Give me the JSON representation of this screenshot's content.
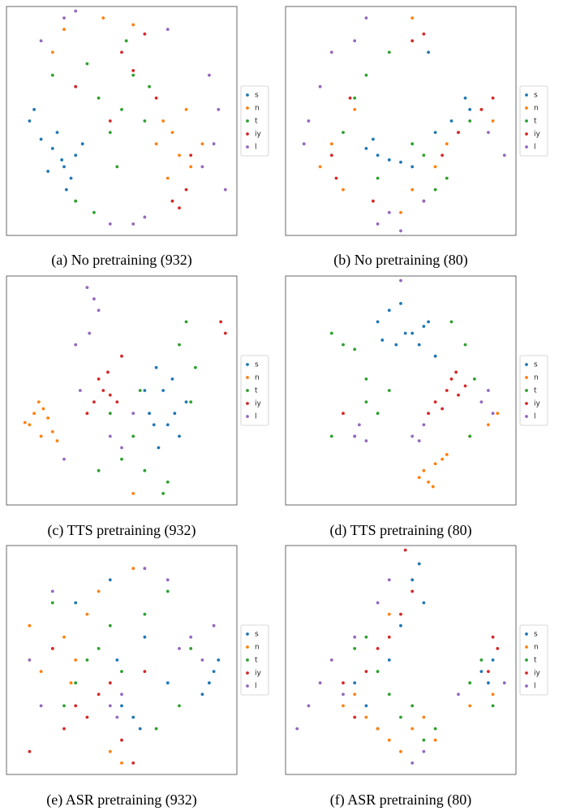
{
  "chart_data": [
    {
      "type": "scatter",
      "caption": "(a) No pretraining (932)",
      "xlim": [
        0,
        100
      ],
      "ylim": [
        0,
        100
      ],
      "series": [
        {
          "name": "s",
          "color": "#1f77b4",
          "x": [
            12,
            15,
            20,
            25,
            28,
            22,
            30,
            18,
            10,
            33,
            26,
            24
          ],
          "y": [
            55,
            42,
            38,
            30,
            25,
            45,
            35,
            28,
            50,
            40,
            20,
            33
          ]
        },
        {
          "name": "n",
          "color": "#ff7f0e",
          "x": [
            68,
            72,
            75,
            80,
            70,
            78,
            65,
            25,
            42,
            55,
            20,
            85
          ],
          "y": [
            50,
            45,
            35,
            30,
            25,
            55,
            40,
            90,
            95,
            92,
            80,
            40
          ]
        },
        {
          "name": "t",
          "color": "#2ca02c",
          "x": [
            40,
            50,
            45,
            55,
            35,
            60,
            30,
            48,
            62,
            52,
            38,
            20
          ],
          "y": [
            60,
            55,
            45,
            70,
            75,
            50,
            15,
            30,
            65,
            85,
            10,
            70
          ]
        },
        {
          "name": "iy",
          "color": "#d62728",
          "x": [
            72,
            75,
            78,
            50,
            55,
            30,
            65,
            45,
            80,
            60
          ],
          "y": [
            15,
            12,
            20,
            80,
            72,
            65,
            60,
            50,
            35,
            88
          ]
        },
        {
          "name": "l",
          "color": "#9467bd",
          "x": [
            85,
            90,
            88,
            25,
            15,
            30,
            55,
            60,
            92,
            95,
            45,
            70
          ],
          "y": [
            30,
            40,
            70,
            95,
            85,
            98,
            5,
            8,
            55,
            20,
            5,
            90
          ]
        }
      ]
    },
    {
      "type": "scatter",
      "caption": "(b) No pretraining (80)",
      "xlim": [
        0,
        100
      ],
      "ylim": [
        0,
        100
      ],
      "series": [
        {
          "name": "s",
          "color": "#1f77b4",
          "x": [
            35,
            40,
            45,
            50,
            38,
            55,
            80,
            78,
            65,
            72,
            62
          ],
          "y": [
            38,
            35,
            33,
            32,
            42,
            30,
            55,
            60,
            45,
            50,
            80
          ]
        },
        {
          "name": "n",
          "color": "#ff7f0e",
          "x": [
            15,
            20,
            25,
            30,
            55,
            60,
            50,
            65,
            70,
            85,
            90,
            55
          ],
          "y": [
            30,
            40,
            20,
            55,
            20,
            15,
            10,
            30,
            40,
            55,
            50,
            95
          ]
        },
        {
          "name": "t",
          "color": "#2ca02c",
          "x": [
            30,
            35,
            25,
            40,
            55,
            60,
            65,
            45,
            70,
            80,
            75
          ],
          "y": [
            60,
            70,
            45,
            25,
            40,
            35,
            20,
            80,
            25,
            50,
            45
          ]
        },
        {
          "name": "iy",
          "color": "#d62728",
          "x": [
            20,
            22,
            28,
            38,
            55,
            60,
            90,
            85,
            75,
            68
          ],
          "y": [
            35,
            25,
            60,
            15,
            85,
            88,
            60,
            55,
            45,
            35
          ]
        },
        {
          "name": "l",
          "color": "#9467bd",
          "x": [
            10,
            8,
            15,
            20,
            30,
            35,
            40,
            45,
            50,
            60,
            88,
            95
          ],
          "y": [
            50,
            40,
            65,
            80,
            85,
            95,
            5,
            10,
            2,
            15,
            45,
            35
          ]
        }
      ]
    },
    {
      "type": "scatter",
      "caption": "(c) TTS pretraining (932)",
      "xlim": [
        0,
        100
      ],
      "ylim": [
        0,
        100
      ],
      "series": [
        {
          "name": "s",
          "color": "#1f77b4",
          "x": [
            65,
            68,
            62,
            70,
            75,
            72,
            66,
            78,
            60,
            73,
            64
          ],
          "y": [
            60,
            50,
            40,
            35,
            30,
            55,
            25,
            45,
            50,
            40,
            35
          ]
        },
        {
          "name": "n",
          "color": "#ff7f0e",
          "x": [
            10,
            12,
            15,
            18,
            20,
            14,
            22,
            16,
            8,
            55
          ],
          "y": [
            35,
            40,
            30,
            38,
            32,
            45,
            28,
            42,
            36,
            5
          ]
        },
        {
          "name": "t",
          "color": "#2ca02c",
          "x": [
            55,
            60,
            70,
            80,
            82,
            75,
            58,
            50,
            40,
            45,
            68,
            78
          ],
          "y": [
            30,
            15,
            10,
            45,
            60,
            70,
            50,
            20,
            15,
            40,
            5,
            80
          ]
        },
        {
          "name": "iy",
          "color": "#d62728",
          "x": [
            40,
            42,
            45,
            38,
            44,
            48,
            35,
            95,
            93,
            50
          ],
          "y": [
            55,
            50,
            48,
            45,
            58,
            45,
            40,
            75,
            80,
            65
          ]
        },
        {
          "name": "l",
          "color": "#9467bd",
          "x": [
            35,
            38,
            40,
            36,
            30,
            32,
            45,
            50,
            25,
            55
          ],
          "y": [
            95,
            90,
            85,
            75,
            70,
            50,
            30,
            25,
            20,
            40
          ]
        }
      ]
    },
    {
      "type": "scatter",
      "caption": "(d) TTS pretraining (80)",
      "xlim": [
        0,
        100
      ],
      "ylim": [
        0,
        100
      ],
      "series": [
        {
          "name": "s",
          "color": "#1f77b4",
          "x": [
            40,
            45,
            50,
            55,
            60,
            42,
            48,
            52,
            58,
            62,
            65
          ],
          "y": [
            80,
            85,
            88,
            75,
            78,
            72,
            70,
            75,
            70,
            80,
            65
          ]
        },
        {
          "name": "n",
          "color": "#ff7f0e",
          "x": [
            60,
            62,
            65,
            58,
            68,
            64,
            70,
            80,
            88,
            92
          ],
          "y": [
            15,
            10,
            18,
            12,
            20,
            8,
            22,
            30,
            35,
            40
          ]
        },
        {
          "name": "t",
          "color": "#2ca02c",
          "x": [
            20,
            25,
            30,
            35,
            40,
            72,
            78,
            82,
            35,
            45,
            80,
            20
          ],
          "y": [
            75,
            70,
            68,
            45,
            40,
            80,
            70,
            55,
            55,
            50,
            30,
            30
          ]
        },
        {
          "name": "iy",
          "color": "#d62728",
          "x": [
            65,
            70,
            72,
            75,
            68,
            74,
            62,
            78,
            30,
            25
          ],
          "y": [
            45,
            50,
            55,
            48,
            42,
            58,
            40,
            52,
            30,
            40
          ]
        },
        {
          "name": "l",
          "color": "#9467bd",
          "x": [
            30,
            32,
            35,
            55,
            58,
            60,
            85,
            88,
            90,
            50
          ],
          "y": [
            30,
            35,
            28,
            30,
            28,
            35,
            45,
            50,
            40,
            98
          ]
        }
      ]
    },
    {
      "type": "scatter",
      "caption": "(e) ASR pretraining (932)",
      "xlim": [
        0,
        100
      ],
      "ylim": [
        0,
        100
      ],
      "series": [
        {
          "name": "s",
          "color": "#1f77b4",
          "x": [
            88,
            90,
            85,
            92,
            55,
            58,
            50,
            60,
            30,
            45,
            48,
            70
          ],
          "y": [
            40,
            45,
            35,
            50,
            25,
            20,
            30,
            60,
            75,
            85,
            50,
            40
          ]
        },
        {
          "name": "n",
          "color": "#ff7f0e",
          "x": [
            20,
            25,
            30,
            35,
            40,
            15,
            45,
            50,
            10,
            55,
            28
          ],
          "y": [
            55,
            60,
            50,
            70,
            80,
            45,
            10,
            5,
            65,
            90,
            40
          ]
        },
        {
          "name": "t",
          "color": "#2ca02c",
          "x": [
            30,
            35,
            40,
            25,
            50,
            60,
            65,
            45,
            70,
            75,
            80,
            20
          ],
          "y": [
            40,
            50,
            55,
            30,
            45,
            70,
            20,
            65,
            80,
            30,
            55,
            75
          ]
        },
        {
          "name": "iy",
          "color": "#d62728",
          "x": [
            30,
            35,
            40,
            25,
            45,
            10,
            55,
            50,
            20,
            60
          ],
          "y": [
            30,
            25,
            35,
            20,
            40,
            10,
            5,
            15,
            55,
            45
          ]
        },
        {
          "name": "l",
          "color": "#9467bd",
          "x": [
            45,
            50,
            48,
            75,
            80,
            85,
            60,
            20,
            15,
            90,
            70,
            10
          ],
          "y": [
            30,
            35,
            25,
            55,
            60,
            50,
            90,
            80,
            30,
            65,
            85,
            50
          ]
        }
      ]
    },
    {
      "type": "scatter",
      "caption": "(f) ASR pretraining (80)",
      "xlim": [
        0,
        100
      ],
      "ylim": [
        0,
        100
      ],
      "series": [
        {
          "name": "s",
          "color": "#1f77b4",
          "x": [
            55,
            60,
            50,
            45,
            30,
            35,
            85,
            88,
            90,
            40,
            58
          ],
          "y": [
            85,
            75,
            65,
            50,
            40,
            30,
            45,
            40,
            50,
            20,
            92
          ]
        },
        {
          "name": "n",
          "color": "#ff7f0e",
          "x": [
            25,
            30,
            35,
            40,
            45,
            50,
            55,
            60,
            65,
            80,
            90,
            45
          ],
          "y": [
            30,
            35,
            25,
            20,
            15,
            10,
            20,
            25,
            15,
            30,
            35,
            70
          ]
        },
        {
          "name": "t",
          "color": "#2ca02c",
          "x": [
            30,
            35,
            40,
            45,
            50,
            55,
            60,
            65,
            80,
            85,
            90
          ],
          "y": [
            55,
            60,
            45,
            35,
            25,
            30,
            15,
            20,
            40,
            50,
            30
          ]
        },
        {
          "name": "iy",
          "color": "#d62728",
          "x": [
            35,
            40,
            45,
            50,
            55,
            90,
            92,
            88,
            52,
            30,
            25
          ],
          "y": [
            45,
            55,
            60,
            70,
            80,
            60,
            55,
            45,
            98,
            25,
            40
          ]
        },
        {
          "name": "l",
          "color": "#9467bd",
          "x": [
            15,
            20,
            25,
            30,
            5,
            10,
            55,
            60,
            40,
            75,
            95,
            45
          ],
          "y": [
            40,
            50,
            35,
            60,
            20,
            30,
            5,
            10,
            75,
            35,
            40,
            85
          ]
        }
      ]
    }
  ]
}
